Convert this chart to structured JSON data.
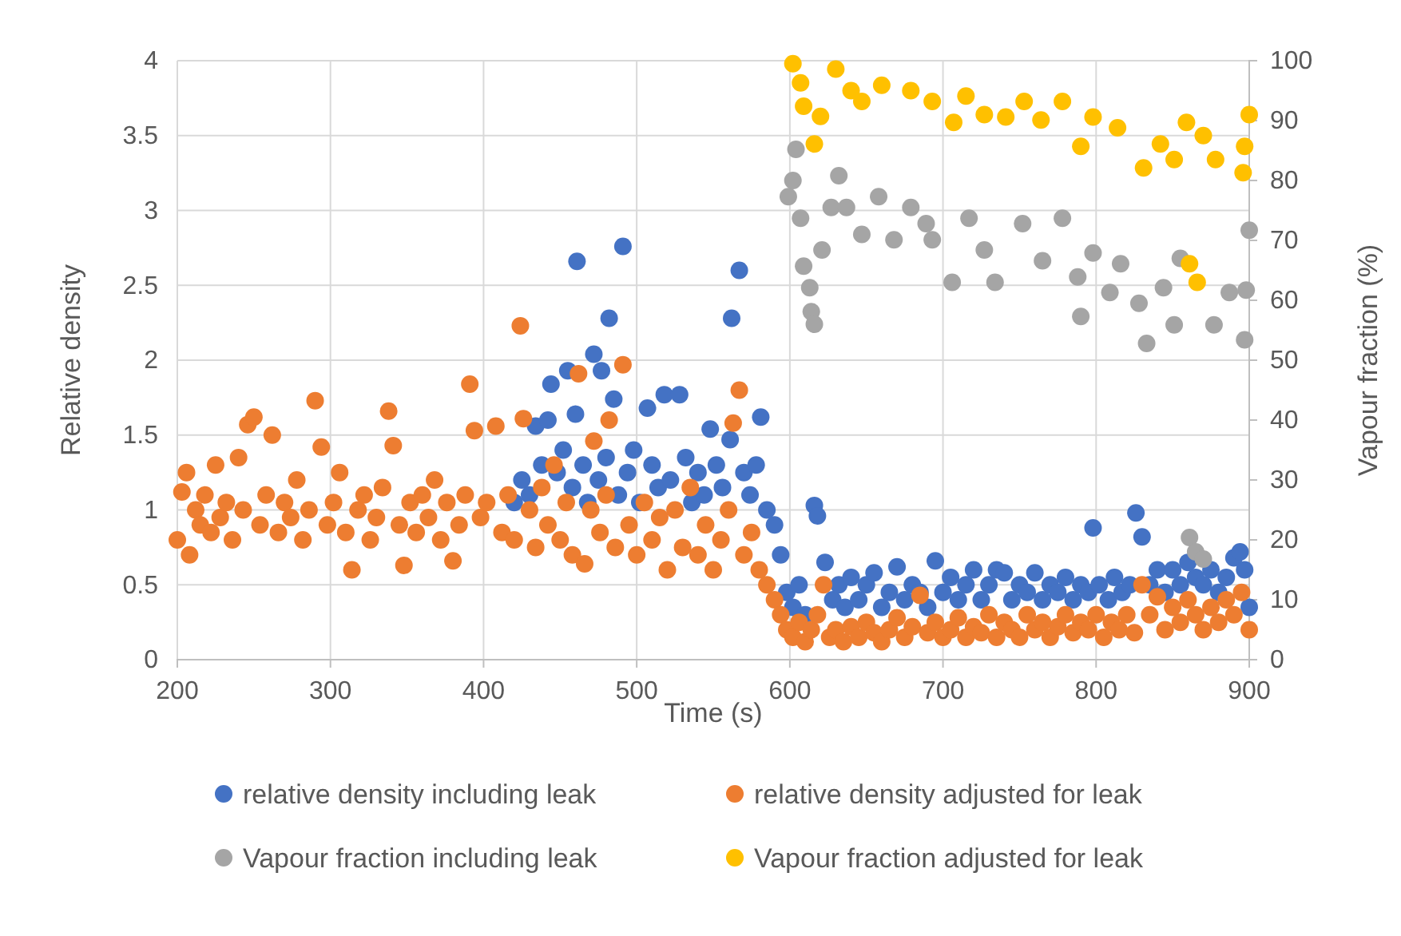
{
  "chart_data": {
    "type": "scatter",
    "xlabel": "Time (s)",
    "ylabel": "Relative density",
    "y2label": "Vapour fraction (%)",
    "xlim": [
      200,
      900
    ],
    "xticks": [
      200,
      300,
      400,
      500,
      600,
      700,
      800,
      900
    ],
    "ylim": [
      0,
      4
    ],
    "yticks": [
      0,
      0.5,
      1,
      1.5,
      2,
      2.5,
      3,
      3.5,
      4
    ],
    "y2lim": [
      0,
      100
    ],
    "y2ticks": [
      0,
      10,
      20,
      30,
      40,
      50,
      60,
      70,
      80,
      90,
      100
    ],
    "grid": true,
    "legend": "bottom",
    "marker": "circle",
    "series": [
      {
        "name": "relative density including leak",
        "color": "#4472c4",
        "x": [
          420,
          425,
          430,
          434,
          438,
          442,
          444,
          448,
          452,
          455,
          458,
          460,
          461,
          465,
          468,
          472,
          475,
          477,
          480,
          482,
          485,
          488,
          491,
          494,
          498,
          502,
          507,
          510,
          514,
          518,
          522,
          528,
          532,
          536,
          540,
          544,
          548,
          552,
          556,
          561,
          562,
          567,
          570,
          574,
          578,
          581,
          585,
          590,
          594,
          598,
          602,
          606,
          610,
          616,
          618,
          623,
          628,
          632,
          636,
          640,
          645,
          650,
          655,
          660,
          665,
          670,
          675,
          680,
          685,
          690,
          695,
          700,
          705,
          710,
          715,
          720,
          725,
          730,
          735,
          740,
          745,
          750,
          755,
          760,
          765,
          770,
          775,
          780,
          785,
          790,
          795,
          798,
          802,
          808,
          812,
          817,
          822,
          826,
          830,
          835,
          840,
          845,
          850,
          855,
          860,
          865,
          870,
          875,
          880,
          885,
          890,
          894,
          897,
          900
        ],
        "values": [
          1.05,
          1.2,
          1.1,
          1.56,
          1.3,
          1.6,
          1.84,
          1.25,
          1.4,
          1.93,
          1.15,
          1.64,
          2.66,
          1.3,
          1.05,
          2.04,
          1.2,
          1.93,
          1.35,
          2.28,
          1.74,
          1.1,
          2.76,
          1.25,
          1.4,
          1.05,
          1.68,
          1.3,
          1.15,
          1.77,
          1.2,
          1.77,
          1.35,
          1.05,
          1.25,
          1.1,
          1.54,
          1.3,
          1.15,
          1.47,
          2.28,
          2.6,
          1.25,
          1.1,
          1.3,
          1.62,
          1.0,
          0.9,
          0.7,
          0.45,
          0.35,
          0.5,
          0.3,
          1.03,
          0.96,
          0.65,
          0.4,
          0.5,
          0.35,
          0.55,
          0.4,
          0.5,
          0.58,
          0.35,
          0.45,
          0.62,
          0.4,
          0.5,
          0.45,
          0.35,
          0.66,
          0.45,
          0.55,
          0.4,
          0.5,
          0.6,
          0.4,
          0.5,
          0.6,
          0.58,
          0.4,
          0.5,
          0.45,
          0.58,
          0.4,
          0.5,
          0.45,
          0.55,
          0.4,
          0.5,
          0.45,
          0.88,
          0.5,
          0.4,
          0.55,
          0.45,
          0.5,
          0.98,
          0.82,
          0.5,
          0.6,
          0.45,
          0.6,
          0.5,
          0.65,
          0.55,
          0.5,
          0.6,
          0.45,
          0.55,
          0.68,
          0.72,
          0.6,
          0.35
        ]
      },
      {
        "name": "relative density adjusted for leak",
        "color": "#ed7d31",
        "x": [
          200,
          203,
          206,
          208,
          212,
          215,
          218,
          222,
          225,
          228,
          232,
          236,
          240,
          243,
          246,
          250,
          254,
          258,
          262,
          266,
          270,
          274,
          278,
          282,
          286,
          290,
          294,
          298,
          302,
          306,
          310,
          314,
          318,
          322,
          326,
          330,
          334,
          338,
          341,
          345,
          348,
          352,
          356,
          360,
          364,
          368,
          372,
          376,
          380,
          384,
          388,
          391,
          394,
          398,
          402,
          408,
          412,
          416,
          420,
          424,
          426,
          430,
          434,
          438,
          442,
          446,
          450,
          454,
          458,
          462,
          466,
          470,
          472,
          476,
          480,
          482,
          486,
          491,
          495,
          500,
          505,
          510,
          515,
          520,
          525,
          530,
          535,
          540,
          545,
          550,
          555,
          560,
          563,
          567,
          570,
          575,
          580,
          585,
          590,
          594,
          598,
          602,
          606,
          610,
          614,
          618,
          622,
          626,
          630,
          635,
          640,
          645,
          650,
          655,
          660,
          665,
          670,
          675,
          680,
          685,
          690,
          695,
          700,
          705,
          710,
          715,
          720,
          725,
          730,
          735,
          740,
          745,
          750,
          755,
          760,
          765,
          770,
          775,
          780,
          785,
          790,
          795,
          800,
          805,
          810,
          815,
          820,
          825,
          830,
          835,
          840,
          845,
          850,
          855,
          860,
          865,
          870,
          875,
          880,
          885,
          890,
          895,
          900
        ],
        "values": [
          0.8,
          1.12,
          1.25,
          0.7,
          1.0,
          0.9,
          1.1,
          0.85,
          1.3,
          0.95,
          1.05,
          0.8,
          1.35,
          1.0,
          1.57,
          1.62,
          0.9,
          1.1,
          1.5,
          0.85,
          1.05,
          0.95,
          1.2,
          0.8,
          1.0,
          1.73,
          1.42,
          0.9,
          1.05,
          1.25,
          0.85,
          0.6,
          1.0,
          1.1,
          0.8,
          0.95,
          1.15,
          1.66,
          1.43,
          0.9,
          0.63,
          1.05,
          0.85,
          1.1,
          0.95,
          1.2,
          0.8,
          1.05,
          0.66,
          0.9,
          1.1,
          1.84,
          1.53,
          0.95,
          1.05,
          1.56,
          0.85,
          1.1,
          0.8,
          2.23,
          1.61,
          1.0,
          0.75,
          1.15,
          0.9,
          1.3,
          0.8,
          1.05,
          0.7,
          1.91,
          0.64,
          1.0,
          1.46,
          0.85,
          1.1,
          1.6,
          0.75,
          1.97,
          0.9,
          0.7,
          1.05,
          0.8,
          0.95,
          0.6,
          1.0,
          0.75,
          1.15,
          0.7,
          0.9,
          0.6,
          0.8,
          1.0,
          1.58,
          1.8,
          0.7,
          0.85,
          0.6,
          0.5,
          0.4,
          0.3,
          0.2,
          0.15,
          0.25,
          0.12,
          0.2,
          0.3,
          0.5,
          0.15,
          0.2,
          0.12,
          0.22,
          0.15,
          0.25,
          0.18,
          0.12,
          0.2,
          0.28,
          0.15,
          0.22,
          0.43,
          0.18,
          0.25,
          0.15,
          0.2,
          0.28,
          0.15,
          0.22,
          0.18,
          0.3,
          0.15,
          0.25,
          0.2,
          0.15,
          0.3,
          0.2,
          0.25,
          0.15,
          0.22,
          0.3,
          0.18,
          0.25,
          0.2,
          0.3,
          0.15,
          0.25,
          0.2,
          0.3,
          0.18,
          0.5,
          0.3,
          0.42,
          0.2,
          0.35,
          0.25,
          0.4,
          0.3,
          0.2,
          0.35,
          0.25,
          0.4,
          0.3,
          0.45,
          0.2
        ]
      },
      {
        "name": "Vapour fraction including leak",
        "color": "#a5a5a5",
        "axis": "y2",
        "x": [
          599,
          602,
          604,
          607,
          609,
          613,
          614,
          616,
          621,
          627,
          632,
          637,
          647,
          658,
          668,
          679,
          689,
          693,
          706,
          717,
          727,
          734,
          752,
          765,
          778,
          788,
          790,
          798,
          809,
          816,
          828,
          833,
          844,
          851,
          855,
          861,
          865,
          870,
          877,
          887,
          897,
          898,
          900
        ],
        "values": [
          77.3,
          80,
          85.2,
          73.7,
          65.7,
          62.1,
          58.1,
          56,
          68.4,
          75.5,
          80.8,
          75.5,
          71,
          77.3,
          70.1,
          75.5,
          72.8,
          70.1,
          63,
          73.7,
          68.4,
          63,
          72.8,
          66.6,
          73.7,
          63.9,
          57.3,
          67.9,
          61.3,
          66.1,
          59.5,
          52.8,
          62.1,
          55.9,
          67,
          20.4,
          18,
          16.8,
          55.9,
          61.3,
          53.4,
          61.7,
          71.7
        ]
      },
      {
        "name": "Vapour fraction adjusted for leak",
        "color": "#ffc000",
        "axis": "y2",
        "x": [
          602,
          607,
          609,
          616,
          620,
          630,
          640,
          647,
          660,
          679,
          693,
          707,
          715,
          727,
          741,
          753,
          764,
          778,
          790,
          798,
          814,
          831,
          842,
          851,
          859,
          861,
          866,
          870,
          878,
          896,
          897,
          900
        ],
        "values": [
          99.5,
          96.3,
          92.4,
          86.1,
          90.7,
          98.6,
          95,
          93.2,
          95.9,
          95,
          93.2,
          89.7,
          94.1,
          91,
          90.6,
          93.2,
          90.1,
          93.2,
          85.7,
          90.6,
          88.8,
          82.1,
          86.1,
          83.5,
          89.7,
          66.1,
          63,
          87.5,
          83.5,
          81.3,
          85.7,
          91
        ]
      }
    ]
  }
}
